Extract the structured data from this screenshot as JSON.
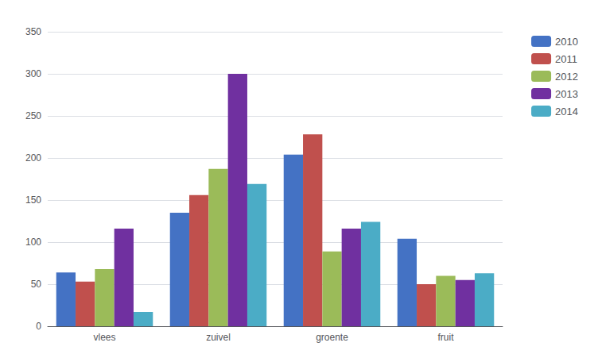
{
  "chart_data": {
    "type": "bar",
    "categories": [
      "vlees",
      "zuivel",
      "groente",
      "fruit"
    ],
    "series": [
      {
        "name": "2010",
        "color": "#4472C4",
        "values": [
          64,
          135,
          204,
          104
        ]
      },
      {
        "name": "2011",
        "color": "#C0504D",
        "values": [
          53,
          156,
          228,
          50
        ]
      },
      {
        "name": "2012",
        "color": "#9BBB59",
        "values": [
          68,
          187,
          89,
          60
        ]
      },
      {
        "name": "2013",
        "color": "#7030A0",
        "values": [
          116,
          300,
          116,
          55
        ]
      },
      {
        "name": "2014",
        "color": "#4BACC6",
        "values": [
          17,
          169,
          124,
          63
        ]
      }
    ],
    "ylim": [
      0,
      350
    ],
    "yticks": [
      0,
      50,
      100,
      150,
      200,
      250,
      300,
      350
    ],
    "grid": true,
    "legend": "right"
  }
}
